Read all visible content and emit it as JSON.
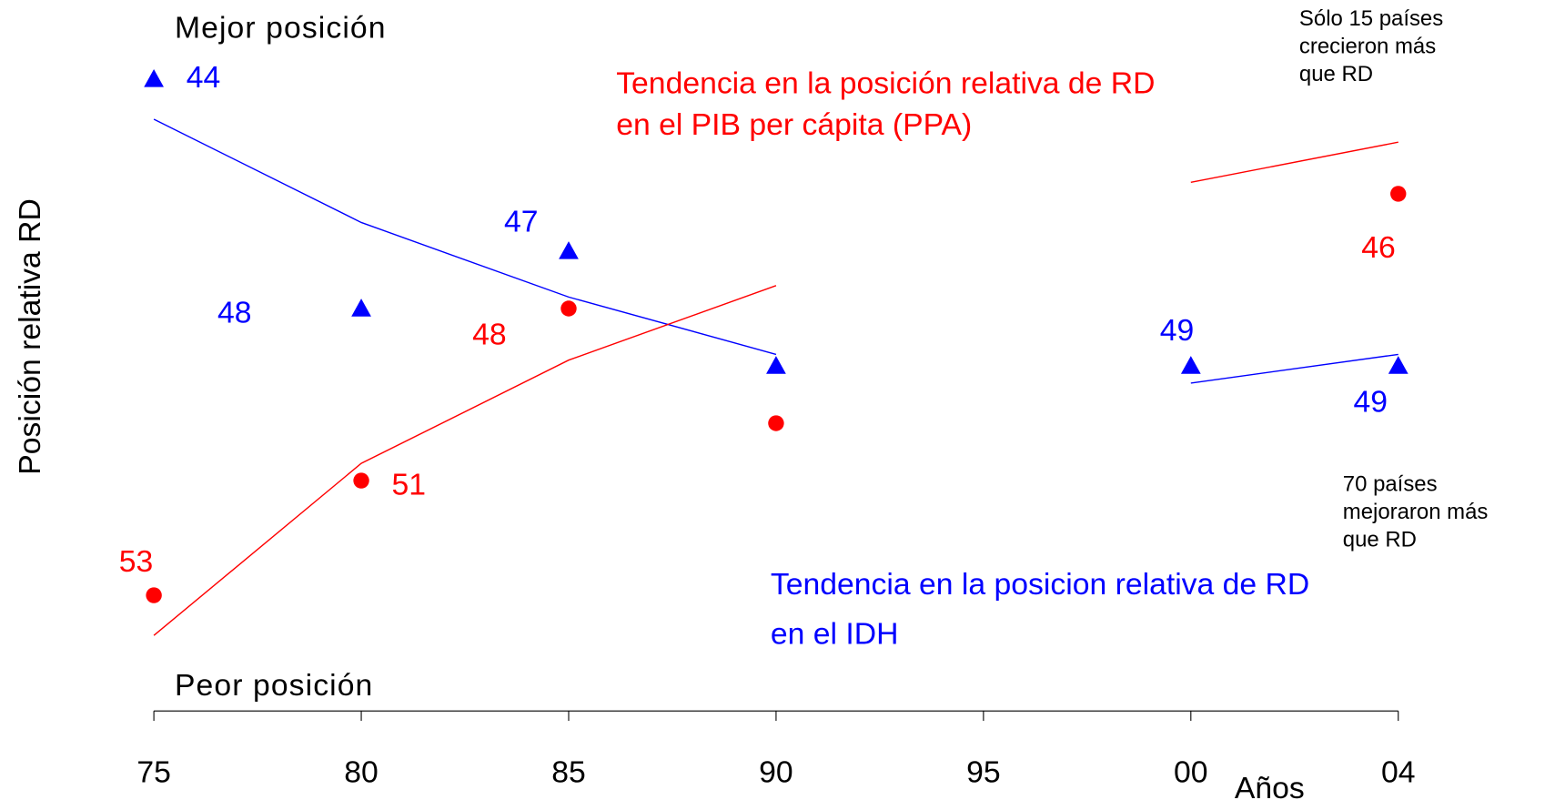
{
  "chart_data": {
    "type": "line",
    "y_label": "Posición relativa RD",
    "x_label": "Años",
    "top_note": "Mejor posición",
    "bottom_note": "Peor posición",
    "categories": [
      "75",
      "80",
      "85",
      "90",
      "95",
      "00",
      "04"
    ],
    "ylim": [
      55,
      42.5
    ],
    "series": [
      {
        "name": "IDH",
        "color": "#0000ff",
        "marker": "triangle",
        "values": [
          44,
          48,
          47,
          49,
          null,
          49,
          49
        ],
        "value_labels": [
          "44",
          "48",
          "47",
          null,
          null,
          "49",
          "49"
        ]
      },
      {
        "name": "PIB per cápita (PPA)",
        "color": "#ff0000",
        "marker": "circle",
        "values": [
          53,
          51,
          48,
          50,
          null,
          null,
          46
        ],
        "value_labels": [
          "53",
          "51",
          "48",
          null,
          null,
          null,
          "46"
        ]
      }
    ],
    "trends": [
      {
        "color": "#0000ff",
        "values": [
          44.7,
          46.5,
          47.8,
          48.8,
          null,
          49.3,
          48.8
        ]
      },
      {
        "color": "#ff0000",
        "values": [
          53.7,
          50.7,
          48.9,
          47.6,
          null,
          45.8,
          45.1
        ]
      }
    ],
    "annotations": [
      {
        "color": "#ff0000",
        "lines": [
          "Tendencia en la posición relativa de RD",
          "en el PIB per cápita (PPA)"
        ]
      },
      {
        "color": "#0000ff",
        "lines": [
          "Tendencia en la posicion relativa de RD",
          "en el IDH"
        ]
      },
      {
        "color": "#000000",
        "lines": [
          "Sólo 15 países",
          "crecieron más",
          "que RD"
        ]
      },
      {
        "color": "#000000",
        "lines": [
          "70 países",
          "mejoraron más",
          "que RD"
        ]
      }
    ]
  }
}
